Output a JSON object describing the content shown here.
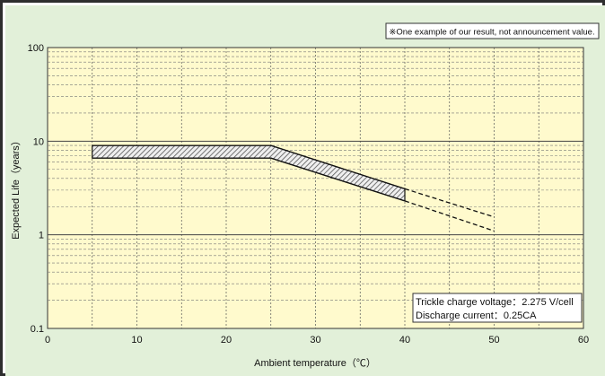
{
  "chart_data": {
    "type": "line",
    "title": "",
    "note": "※One example of our result, not announcement value.",
    "xlabel": "Ambient temperature（℃）",
    "ylabel": "Expected Life（years）",
    "xlim": [
      0,
      60
    ],
    "ylim": [
      0.1,
      100
    ],
    "yscale": "log",
    "x_ticks": [
      "0",
      "10",
      "20",
      "30",
      "40",
      "50",
      "60"
    ],
    "y_ticks": [
      "0.1",
      "1",
      "10",
      "100"
    ],
    "grid": true,
    "plot_background": "#fffacd",
    "panel_background": "#e2f0d9",
    "band_fill": "hatched",
    "series": [
      {
        "x": [
          5,
          25,
          40
        ],
        "y": [
          9,
          9,
          3.1
        ],
        "style": "solid"
      },
      {
        "x": [
          5,
          25,
          40
        ],
        "y": [
          6.6,
          6.6,
          2.3
        ],
        "style": "solid"
      },
      {
        "x": [
          40,
          50
        ],
        "y": [
          3.1,
          1.55
        ],
        "style": "dashed"
      },
      {
        "x": [
          40,
          50
        ],
        "y": [
          2.3,
          1.1
        ],
        "style": "dashed"
      }
    ],
    "conditions": [
      "Trickle charge voltage：2.275 V/cell",
      "Discharge current：0.25CA"
    ]
  }
}
